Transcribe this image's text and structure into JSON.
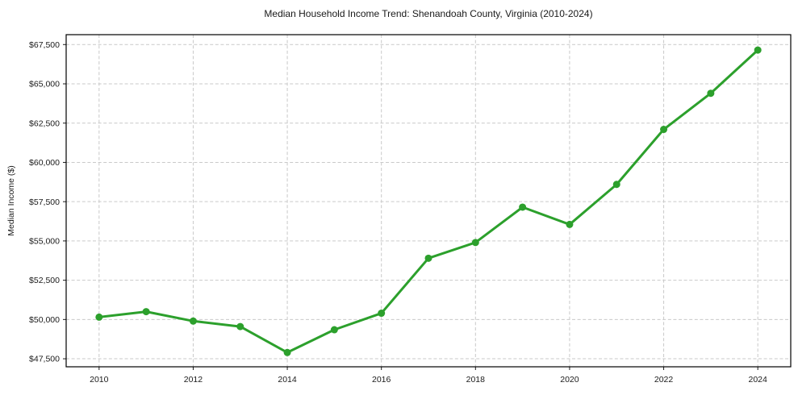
{
  "page": {
    "title": "Median Household Income Trend: Shenandoah County, Virginia (2010-2024)"
  },
  "chart_data": {
    "type": "line",
    "title": "Median Household Income Trend: Shenandoah County, Virginia (2010-2024)",
    "xlabel": "",
    "ylabel": "Median Income ($)",
    "series": [
      {
        "name": "Median Household Income",
        "x": [
          2010,
          2011,
          2012,
          2013,
          2014,
          2015,
          2016,
          2017,
          2018,
          2019,
          2020,
          2021,
          2022,
          2023,
          2024
        ],
        "values": [
          50150,
          50500,
          49900,
          49550,
          47900,
          49350,
          50400,
          53900,
          54900,
          57150,
          56050,
          58600,
          62100,
          64400,
          67150
        ]
      }
    ],
    "x_ticks": [
      2010,
      2012,
      2014,
      2016,
      2018,
      2020,
      2022,
      2024
    ],
    "x_tick_labels": [
      "2010",
      "2012",
      "2014",
      "2016",
      "2018",
      "2020",
      "2022",
      "2024"
    ],
    "y_ticks": [
      47500,
      50000,
      52500,
      55000,
      57500,
      60000,
      62500,
      65000,
      67500
    ],
    "y_tick_labels": [
      "$47,500",
      "$50,000",
      "$52,500",
      "$55,000",
      "$57,500",
      "$60,000",
      "$62,500",
      "$65,000",
      "$67,500"
    ],
    "xlim": [
      2009.3,
      2024.7
    ],
    "ylim": [
      46990,
      68130
    ],
    "grid": true,
    "grid_style": "dashed",
    "legend": "none",
    "line_color": "#2ca02c",
    "marker": "circle",
    "marker_radius": 4.5,
    "frame_color": "#000000",
    "grid_color": "#c9c9c9"
  }
}
